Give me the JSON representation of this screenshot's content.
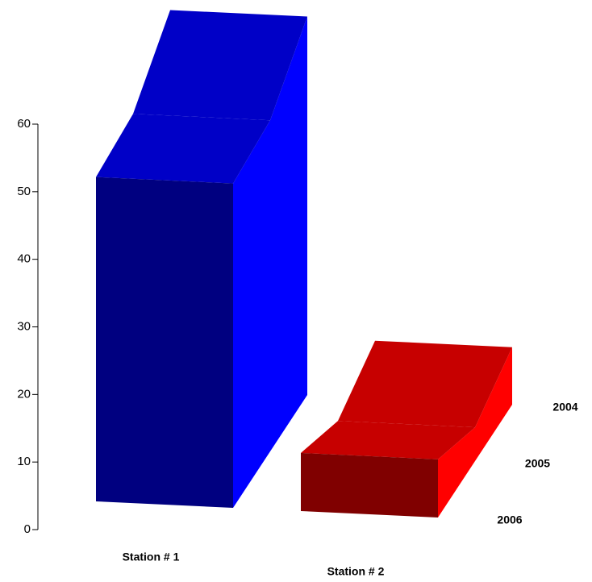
{
  "chart_data": {
    "type": "bar3d",
    "categories": [
      "Station # 1",
      "Station # 2"
    ],
    "colors": [
      "#0000ff",
      "#ff0000"
    ],
    "series": [
      {
        "name": "2004",
        "values": [
          56,
          8.5
        ]
      },
      {
        "name": "2005",
        "values": [
          49,
          5
        ]
      },
      {
        "name": "2006",
        "values": [
          48,
          8.6
        ]
      }
    ],
    "ylim": [
      0,
      60
    ],
    "yticks": [
      0,
      10,
      20,
      30,
      40,
      50,
      60
    ]
  }
}
